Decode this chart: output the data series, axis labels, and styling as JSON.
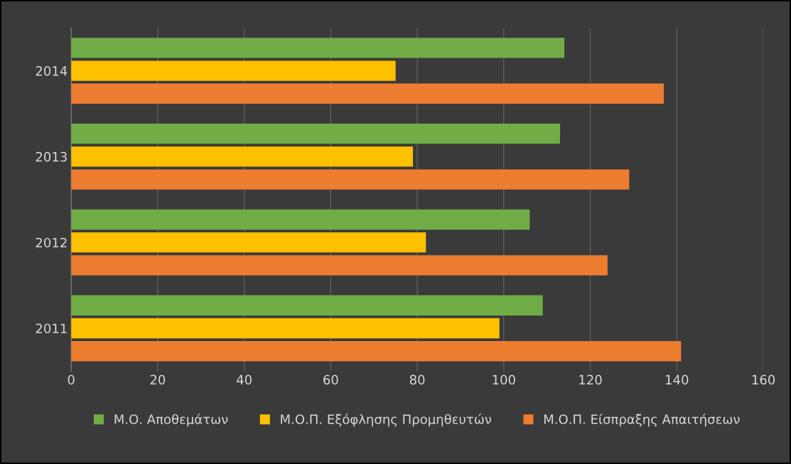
{
  "chart_data": {
    "type": "bar",
    "orientation": "horizontal",
    "categories": [
      "2014",
      "2013",
      "2012",
      "2011"
    ],
    "series": [
      {
        "name": "Μ.Ο. Αποθεμάτων",
        "color": "#70ad47",
        "values": [
          114,
          113,
          106,
          109
        ]
      },
      {
        "name": "Μ.Ο.Π. Εξόφλησης Προμηθευτών",
        "color": "#ffc000",
        "values": [
          75,
          79,
          82,
          99
        ]
      },
      {
        "name": "Μ.Ο.Π. Είσπραξης Απαιτήσεων",
        "color": "#ed7d31",
        "values": [
          137,
          129,
          124,
          141
        ]
      }
    ],
    "xlim": [
      0,
      160
    ],
    "xticks": [
      0,
      20,
      40,
      60,
      80,
      100,
      120,
      140,
      160
    ],
    "grid": "x",
    "legend": "bottom"
  }
}
